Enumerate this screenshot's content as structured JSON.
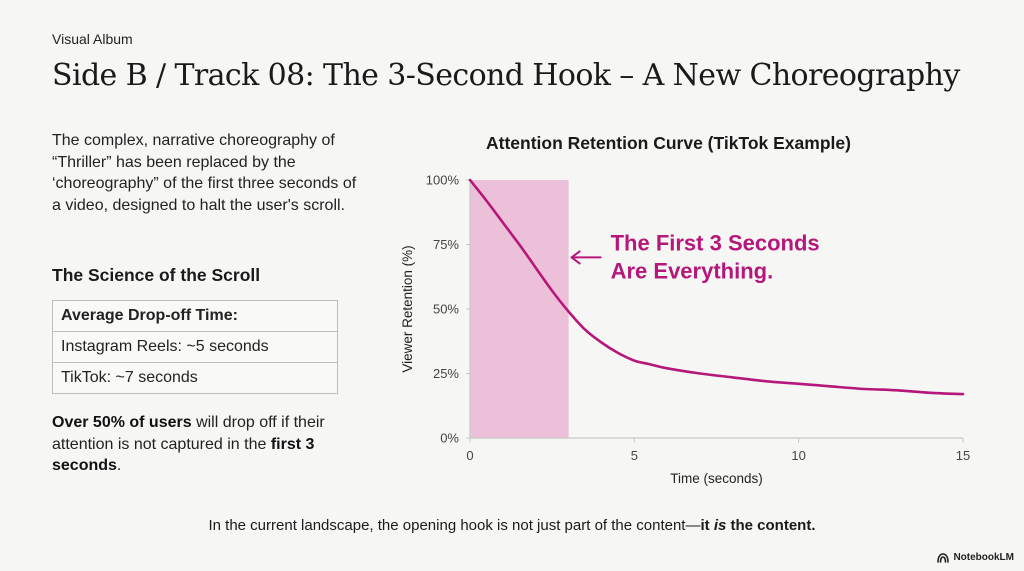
{
  "header": {
    "eyebrow": "Visual Album",
    "title": "Side B / Track 08: The 3-Second Hook – A New Choreography"
  },
  "intro": {
    "text": "The complex, narrative choreography of “Thriller” has been replaced by the ‘choreography” of the first three seconds of a video, designed to halt the user's scroll."
  },
  "science": {
    "heading": "The Science of the Scroll",
    "table_header": "Average Drop-off Time:",
    "rows": [
      "Instagram Reels: ~5 seconds",
      "TikTok: ~7 seconds"
    ]
  },
  "callout": {
    "bold_start": "Over 50% of users",
    "middle": " will drop off if their attention is not captured in the ",
    "bold_end": "first 3 seconds",
    "end": "."
  },
  "footer": {
    "text_start": "In the current landscape, the opening hook is not just part of the content—",
    "bold_a": "it ",
    "bold_italic": "is",
    "bold_b": " the content."
  },
  "brand": {
    "name": "NotebookLM",
    "icon": "notebooklm-logo-icon"
  },
  "colors": {
    "accent": "#b5177a",
    "highlight": "#ecc0d8",
    "axis": "#c8c8c8",
    "text": "#1a1a1a"
  },
  "chart_data": {
    "type": "line",
    "title": "Attention Retention Curve (TikTok Example)",
    "xlabel": "Time (seconds)",
    "ylabel": "Viewer Retention (%)",
    "xlim": [
      0,
      15
    ],
    "ylim": [
      0,
      100
    ],
    "x_ticks": [
      0,
      5,
      10,
      15
    ],
    "y_ticks": [
      0,
      25,
      50,
      75,
      100
    ],
    "y_tick_labels": [
      "0%",
      "25%",
      "50%",
      "75%",
      "100%"
    ],
    "series": [
      {
        "name": "Viewer Retention",
        "x": [
          0,
          0.5,
          1,
          1.5,
          2,
          2.5,
          3,
          3.5,
          4,
          4.5,
          5,
          5.5,
          6,
          7,
          8,
          9,
          10,
          11,
          12,
          13,
          14,
          15
        ],
        "y": [
          100,
          92,
          83.5,
          75,
          66,
          57,
          49,
          42,
          37,
          33,
          30,
          28.5,
          27,
          25,
          23.5,
          22,
          21,
          20,
          19,
          18.5,
          17.5,
          17
        ]
      }
    ],
    "highlight_region": {
      "x_start": 0,
      "x_end": 3
    },
    "annotation": {
      "line1": "The First 3 Seconds",
      "line2": "Are Everything.",
      "points_to_x": 3,
      "at_y": 70
    }
  }
}
